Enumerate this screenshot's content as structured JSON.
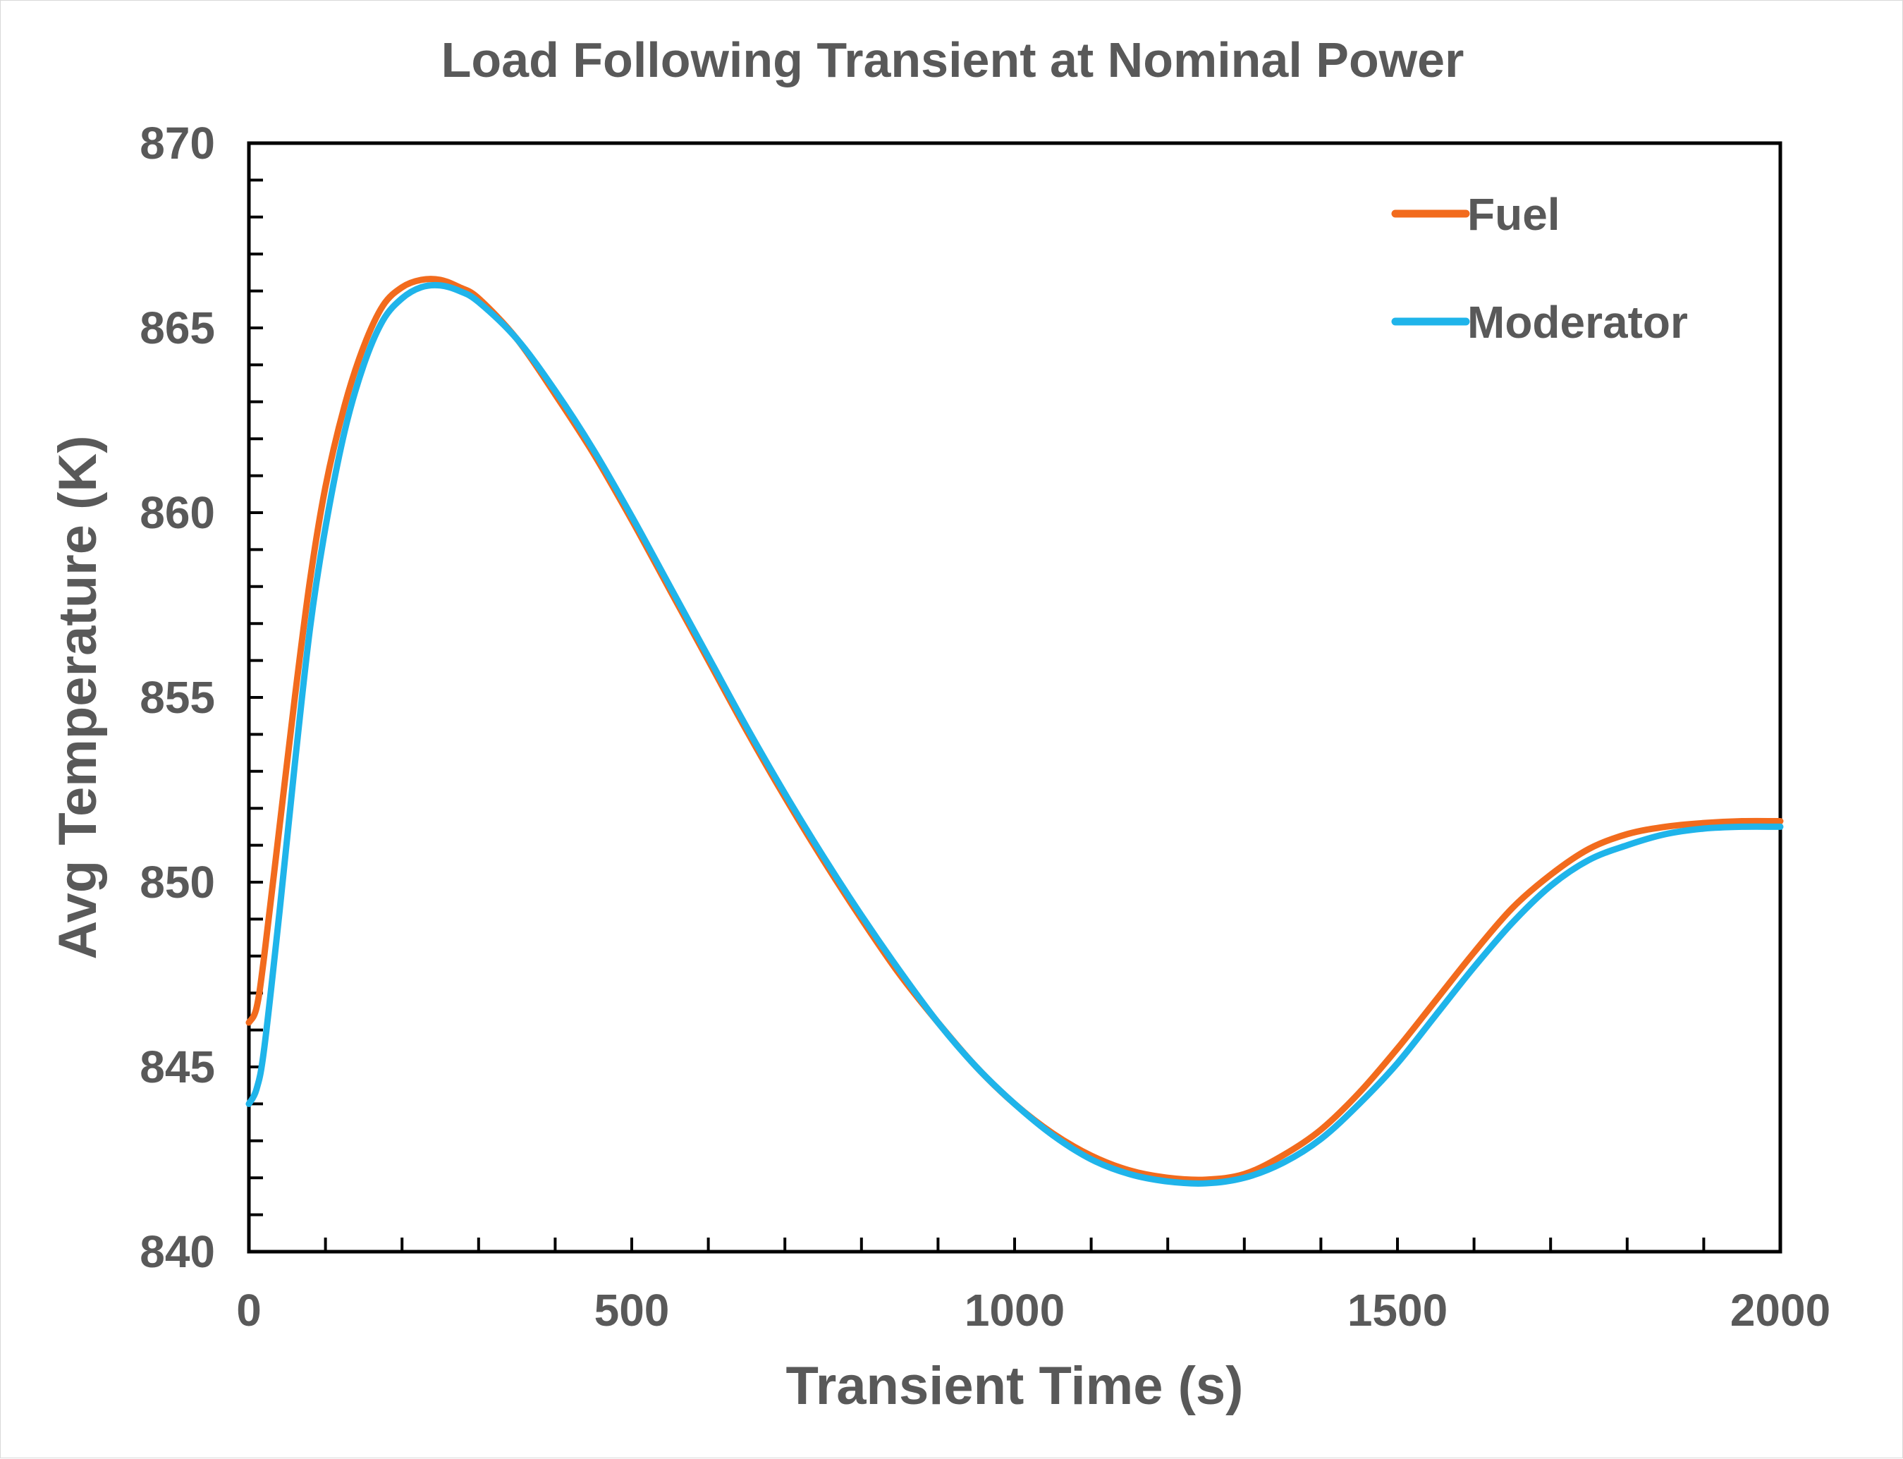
{
  "chart_data": {
    "type": "line",
    "title": "Load Following Transient at Nominal Power",
    "xlabel": "Transient Time (s)",
    "ylabel": "Avg Temperature (K)",
    "xlim": [
      0,
      2000
    ],
    "ylim": [
      840,
      870
    ],
    "x_ticks": [
      "0",
      "500",
      "1000",
      "1500",
      "2000"
    ],
    "y_ticks": [
      "840",
      "845",
      "850",
      "855",
      "860",
      "865",
      "870"
    ],
    "grid": false,
    "legend_position": "top-right",
    "series": [
      {
        "name": "Fuel",
        "color": "#F26B1D",
        "x": [
          0,
          10,
          20,
          40,
          60,
          80,
          100,
          125,
          150,
          175,
          200,
          225,
          250,
          275,
          300,
          350,
          400,
          450,
          500,
          550,
          600,
          650,
          700,
          750,
          800,
          850,
          900,
          950,
          1000,
          1050,
          1100,
          1150,
          1200,
          1250,
          1300,
          1350,
          1400,
          1450,
          1500,
          1550,
          1600,
          1650,
          1700,
          1750,
          1800,
          1850,
          1900,
          1950,
          2000
        ],
        "values": [
          846.2,
          846.6,
          848.0,
          851.5,
          855.0,
          858.2,
          860.7,
          862.9,
          864.5,
          865.6,
          866.1,
          866.3,
          866.3,
          866.1,
          865.8,
          864.7,
          863.2,
          861.6,
          859.8,
          857.9,
          856.0,
          854.1,
          852.3,
          850.6,
          849.0,
          847.5,
          846.2,
          845.0,
          844.0,
          843.2,
          842.6,
          842.2,
          842.0,
          841.95,
          842.1,
          842.6,
          843.3,
          844.3,
          845.5,
          846.8,
          848.1,
          849.3,
          850.2,
          850.9,
          851.3,
          851.5,
          851.6,
          851.65,
          851.65
        ]
      },
      {
        "name": "Moderator",
        "color": "#1FB4EA",
        "x": [
          0,
          10,
          20,
          40,
          60,
          80,
          100,
          125,
          150,
          175,
          200,
          225,
          250,
          275,
          300,
          350,
          400,
          450,
          500,
          550,
          600,
          650,
          700,
          750,
          800,
          850,
          900,
          950,
          1000,
          1050,
          1100,
          1150,
          1200,
          1250,
          1300,
          1350,
          1400,
          1450,
          1500,
          1550,
          1600,
          1650,
          1700,
          1750,
          1800,
          1850,
          1900,
          1950,
          2000
        ],
        "values": [
          844.0,
          844.4,
          845.5,
          849.2,
          853.2,
          856.9,
          859.6,
          862.2,
          864.0,
          865.2,
          865.8,
          866.1,
          866.15,
          866.0,
          865.7,
          864.7,
          863.3,
          861.7,
          859.9,
          858.0,
          856.1,
          854.2,
          852.4,
          850.7,
          849.1,
          847.6,
          846.2,
          845.0,
          844.0,
          843.15,
          842.5,
          842.1,
          841.9,
          841.85,
          842.0,
          842.4,
          843.05,
          844.0,
          845.1,
          846.4,
          847.7,
          848.9,
          849.9,
          850.6,
          851.0,
          851.3,
          851.45,
          851.5,
          851.5
        ]
      }
    ]
  }
}
